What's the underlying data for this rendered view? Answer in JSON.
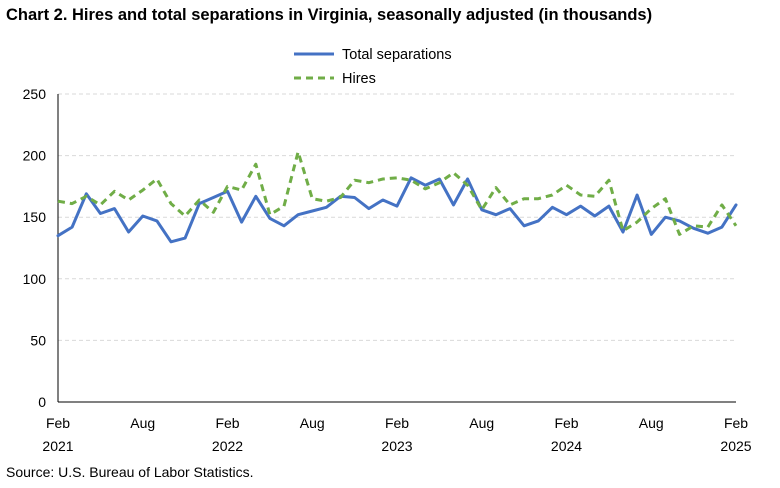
{
  "chart_data": {
    "type": "line",
    "title": "Chart 2. Hires and total separations in Virginia, seasonally adjusted (in thousands)",
    "source": "Source: U.S. Bureau of Labor Statistics.",
    "ylim": [
      0,
      250
    ],
    "yticks": [
      "0",
      "50",
      "100",
      "150",
      "200",
      "250"
    ],
    "grid": true,
    "legend_position": "top-center",
    "x_tick_labels": [
      {
        "month": "Feb",
        "year": "2021"
      },
      {
        "month": "Aug",
        "year": ""
      },
      {
        "month": "Feb",
        "year": "2022"
      },
      {
        "month": "Aug",
        "year": ""
      },
      {
        "month": "Feb",
        "year": "2023"
      },
      {
        "month": "Aug",
        "year": ""
      },
      {
        "month": "Feb",
        "year": "2024"
      },
      {
        "month": "Aug",
        "year": ""
      },
      {
        "month": "Feb",
        "year": "2025"
      }
    ],
    "series": [
      {
        "name": "Total separations",
        "color": "#4472c4",
        "style": "solid",
        "values": [
          135,
          142,
          169,
          153,
          157,
          138,
          151,
          147,
          130,
          133,
          161,
          166,
          171,
          146,
          167,
          149,
          143,
          152,
          155,
          158,
          167,
          166,
          157,
          164,
          159,
          182,
          176,
          181,
          160,
          181,
          156,
          152,
          157,
          143,
          147,
          158,
          152,
          159,
          151,
          159,
          138,
          168,
          136,
          150,
          147,
          141,
          137,
          142,
          160
        ]
      },
      {
        "name": "Hires",
        "color": "#70ad47",
        "style": "dashed",
        "values": [
          163,
          161,
          167,
          160,
          171,
          164,
          172,
          181,
          161,
          151,
          164,
          154,
          175,
          172,
          193,
          152,
          159,
          203,
          165,
          163,
          166,
          180,
          178,
          181,
          182,
          180,
          173,
          178,
          186,
          176,
          156,
          174,
          160,
          165,
          165,
          168,
          176,
          168,
          167,
          180,
          139,
          146,
          157,
          165,
          136,
          143,
          142,
          160,
          143
        ]
      }
    ]
  }
}
